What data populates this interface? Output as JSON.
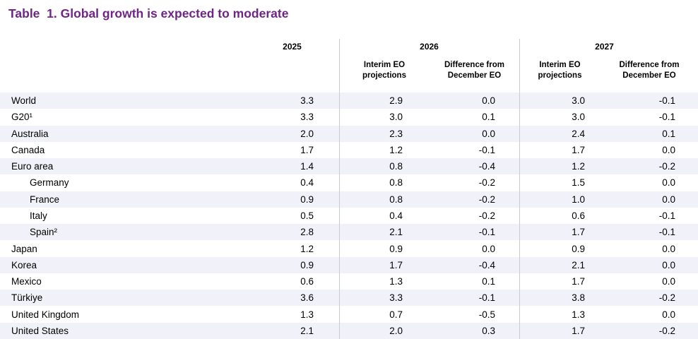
{
  "title": "Table  1. Global growth is expected to moderate",
  "colors": {
    "title_purple": "#6e2585",
    "stripe": "#f1f2f9",
    "divider": "#c9cbcd",
    "text": "#000000",
    "background": "#ffffff"
  },
  "table": {
    "headers": {
      "y2025": "2025",
      "y2026": "2026",
      "y2027": "2027",
      "interim": "Interim EO\nprojections",
      "difference": "Difference from\nDecember EO"
    },
    "rows": [
      {
        "label": "World",
        "indent": false,
        "v2025": "3.3",
        "i2026": "2.9",
        "d2026": "0.0",
        "i2027": "3.0",
        "d2027": "-0.1"
      },
      {
        "label": "G20¹",
        "indent": false,
        "v2025": "3.3",
        "i2026": "3.0",
        "d2026": "0.1",
        "i2027": "3.0",
        "d2027": "-0.1"
      },
      {
        "label": "Australia",
        "indent": false,
        "v2025": "2.0",
        "i2026": "2.3",
        "d2026": "0.0",
        "i2027": "2.4",
        "d2027": "0.1"
      },
      {
        "label": "Canada",
        "indent": false,
        "v2025": "1.7",
        "i2026": "1.2",
        "d2026": "-0.1",
        "i2027": "1.7",
        "d2027": "0.0"
      },
      {
        "label": "Euro area",
        "indent": false,
        "v2025": "1.4",
        "i2026": "0.8",
        "d2026": "-0.4",
        "i2027": "1.2",
        "d2027": "-0.2"
      },
      {
        "label": "Germany",
        "indent": true,
        "v2025": "0.4",
        "i2026": "0.8",
        "d2026": "-0.2",
        "i2027": "1.5",
        "d2027": "0.0"
      },
      {
        "label": "France",
        "indent": true,
        "v2025": "0.9",
        "i2026": "0.8",
        "d2026": "-0.2",
        "i2027": "1.0",
        "d2027": "0.0"
      },
      {
        "label": "Italy",
        "indent": true,
        "v2025": "0.5",
        "i2026": "0.4",
        "d2026": "-0.2",
        "i2027": "0.6",
        "d2027": "-0.1"
      },
      {
        "label": "Spain²",
        "indent": true,
        "v2025": "2.8",
        "i2026": "2.1",
        "d2026": "-0.1",
        "i2027": "1.7",
        "d2027": "-0.1"
      },
      {
        "label": "Japan",
        "indent": false,
        "v2025": "1.2",
        "i2026": "0.9",
        "d2026": "0.0",
        "i2027": "0.9",
        "d2027": "0.0"
      },
      {
        "label": "Korea",
        "indent": false,
        "v2025": "0.9",
        "i2026": "1.7",
        "d2026": "-0.4",
        "i2027": "2.1",
        "d2027": "0.0"
      },
      {
        "label": "Mexico",
        "indent": false,
        "v2025": "0.6",
        "i2026": "1.3",
        "d2026": "0.1",
        "i2027": "1.7",
        "d2027": "0.0"
      },
      {
        "label": "Türkiye",
        "indent": false,
        "v2025": "3.6",
        "i2026": "3.3",
        "d2026": "-0.1",
        "i2027": "3.8",
        "d2027": "-0.2"
      },
      {
        "label": "United Kingdom",
        "indent": false,
        "v2025": "1.3",
        "i2026": "0.7",
        "d2026": "-0.5",
        "i2027": "1.3",
        "d2027": "0.0"
      },
      {
        "label": "United States",
        "indent": false,
        "v2025": "2.1",
        "i2026": "2.0",
        "d2026": "0.3",
        "i2027": "1.7",
        "d2027": "-0.2"
      }
    ]
  }
}
